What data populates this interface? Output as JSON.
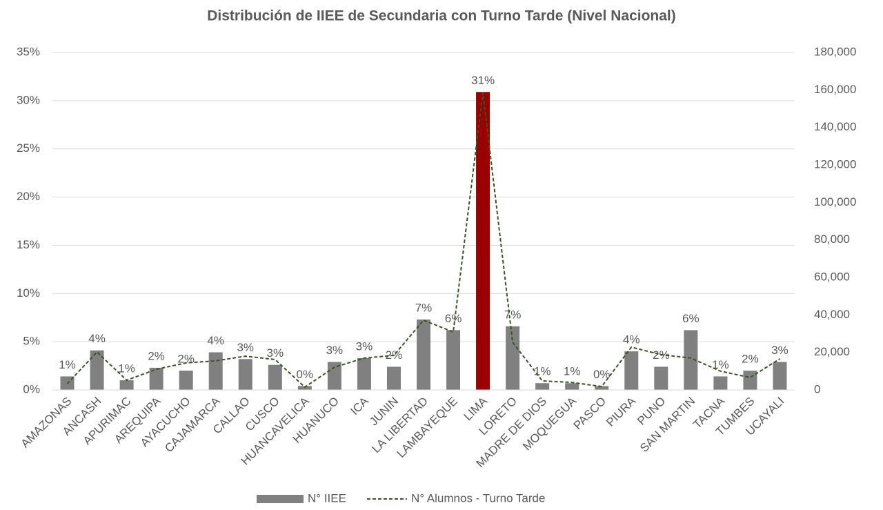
{
  "chart_data": {
    "type": "bar_line",
    "title": "Distribución de IIEE de Secundaria con Turno Tarde (Nivel Nacional)",
    "categories": [
      "AMAZONAS",
      "ANCASH",
      "APURIMAC",
      "AREQUIPA",
      "AYACUCHO",
      "CAJAMARCA",
      "CALLAO",
      "CUSCO",
      "HUANCAVELICA",
      "HUANUCO",
      "ICA",
      "JUNIN",
      "LA LIBERTAD",
      "LAMBAYEQUE",
      "LIMA",
      "LORETO",
      "MADRE DE DIOS",
      "MOQUEGUA",
      "PASCO",
      "PIURA",
      "PUNO",
      "SAN MARTIN",
      "TACNA",
      "TUMBES",
      "UCAYALI"
    ],
    "series": [
      {
        "name": "N° IIEE",
        "type": "bar",
        "color": "#808080",
        "colors": [
          "#808080",
          "#808080",
          "#808080",
          "#808080",
          "#808080",
          "#808080",
          "#808080",
          "#808080",
          "#808080",
          "#808080",
          "#808080",
          "#808080",
          "#808080",
          "#808080",
          "#990000",
          "#808080",
          "#808080",
          "#808080",
          "#808080",
          "#808080",
          "#808080",
          "#808080",
          "#808080",
          "#808080",
          "#808080"
        ],
        "values": [
          1.4,
          4.1,
          1.0,
          2.3,
          2.0,
          3.9,
          3.2,
          2.6,
          0.4,
          2.9,
          3.3,
          2.4,
          7.3,
          6.2,
          30.9,
          6.6,
          0.7,
          0.7,
          0.4,
          4.0,
          2.4,
          6.2,
          1.4,
          2.0,
          2.9
        ],
        "value_labels": [
          "1%",
          "4%",
          "1%",
          "2%",
          "2%",
          "4%",
          "3%",
          "3%",
          "0%",
          "3%",
          "3%",
          "2%",
          "7%",
          "6%",
          "31%",
          "7%",
          "1%",
          "1%",
          "0%",
          "4%",
          "2%",
          "6%",
          "1%",
          "2%",
          "3%"
        ]
      },
      {
        "name": "N° Alumnos - Turno Tarde",
        "type": "line",
        "axis": "y2",
        "color": "#375623",
        "dashed": true,
        "values": [
          3300,
          20200,
          5200,
          11000,
          14400,
          15500,
          18000,
          16200,
          1500,
          12100,
          17000,
          18400,
          37200,
          30900,
          158600,
          25400,
          4800,
          4000,
          1800,
          22800,
          18800,
          17000,
          10000,
          6600,
          16600
        ]
      }
    ],
    "ylim": [
      0,
      35
    ],
    "yticks": [
      {
        "value": 0,
        "label": "0%"
      },
      {
        "value": 5,
        "label": "5%"
      },
      {
        "value": 10,
        "label": "10%"
      },
      {
        "value": 15,
        "label": "15%"
      },
      {
        "value": 20,
        "label": "20%"
      },
      {
        "value": 25,
        "label": "25%"
      },
      {
        "value": 30,
        "label": "30%"
      },
      {
        "value": 35,
        "label": "35%"
      }
    ],
    "y2lim": [
      0,
      180000
    ],
    "y2ticks": [
      0,
      {
        "value": 20000,
        "label": "20,000"
      },
      {
        "value": 40000,
        "label": "40,000"
      },
      {
        "value": 60000,
        "label": "60,000"
      },
      {
        "value": 80000,
        "label": "80,000"
      },
      {
        "value": 100000,
        "label": "100,000"
      },
      {
        "value": 120000,
        "label": "120,000"
      },
      {
        "value": 140000,
        "label": "140,000"
      },
      {
        "value": 160000,
        "label": "160,000"
      },
      {
        "value": 180000,
        "label": "180,000"
      }
    ],
    "grid": true,
    "legend": "bottom"
  }
}
